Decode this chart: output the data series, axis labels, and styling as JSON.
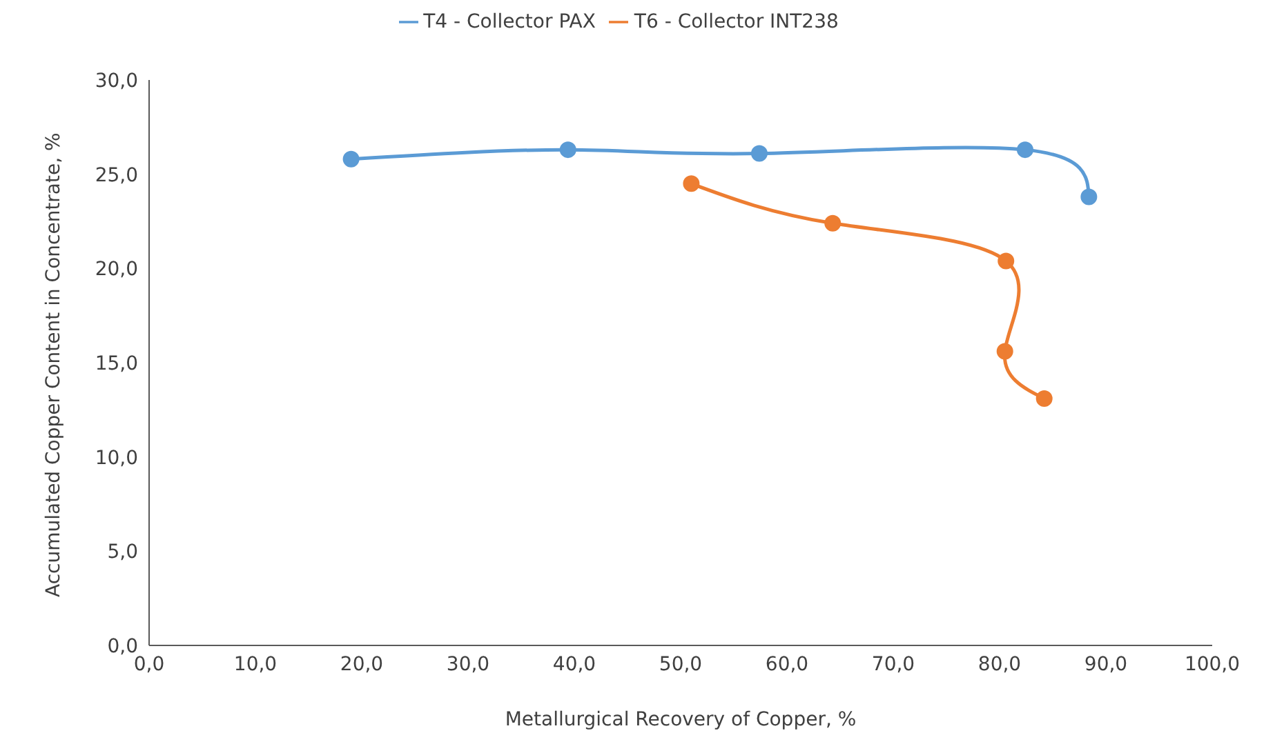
{
  "chart_data": {
    "type": "line",
    "xlabel": "Metallurgical Recovery of Copper, %",
    "ylabel": "Accumulated Copper Content in Concentrate, %",
    "xlim": [
      0,
      100
    ],
    "ylim": [
      0,
      30
    ],
    "xticks": [
      {
        "value": 0,
        "label": "0,0"
      },
      {
        "value": 10,
        "label": "10,0"
      },
      {
        "value": 20,
        "label": "20,0"
      },
      {
        "value": 30,
        "label": "30,0"
      },
      {
        "value": 40,
        "label": "40,0"
      },
      {
        "value": 50,
        "label": "50,0"
      },
      {
        "value": 60,
        "label": "60,0"
      },
      {
        "value": 70,
        "label": "70,0"
      },
      {
        "value": 80,
        "label": "80,0"
      },
      {
        "value": 90,
        "label": "90,0"
      },
      {
        "value": 100,
        "label": "100,0"
      }
    ],
    "yticks": [
      {
        "value": 0,
        "label": "0,0"
      },
      {
        "value": 5,
        "label": "5,0"
      },
      {
        "value": 10,
        "label": "10,0"
      },
      {
        "value": 15,
        "label": "15,0"
      },
      {
        "value": 20,
        "label": "20,0"
      },
      {
        "value": 25,
        "label": "25,0"
      },
      {
        "value": 30,
        "label": "30,0"
      }
    ],
    "grid": false,
    "legend": "top",
    "marker": "circle",
    "line_style": "solid",
    "series": [
      {
        "name": "T4 - Collector PAX",
        "color": "#5b9bd5",
        "x": [
          19.0,
          39.4,
          57.4,
          82.4,
          88.4
        ],
        "values": [
          25.8,
          26.3,
          26.1,
          26.3,
          23.8
        ]
      },
      {
        "name": "T6 - Collector INT238",
        "color": "#ed7d31",
        "x": [
          51.0,
          64.3,
          80.6,
          80.5,
          84.2
        ],
        "values": [
          24.5,
          22.4,
          20.4,
          15.6,
          13.1
        ]
      }
    ]
  }
}
